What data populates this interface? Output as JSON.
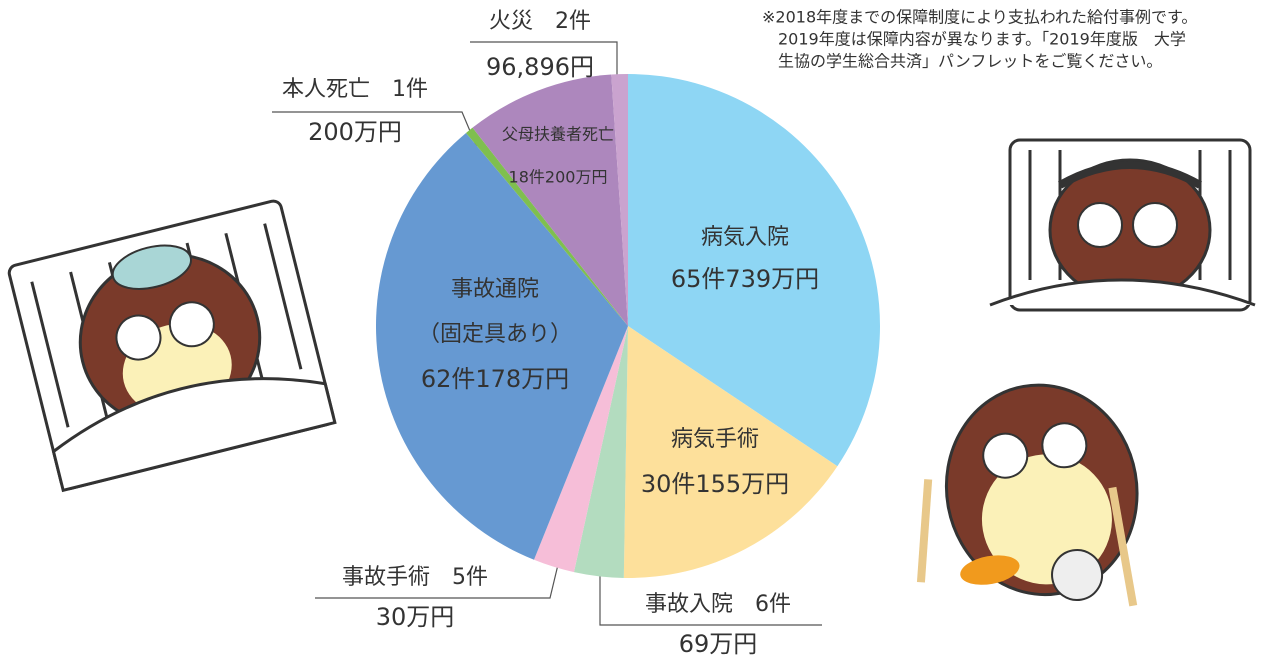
{
  "chart_data": {
    "type": "pie",
    "categories": [
      "病気入院",
      "病気手術",
      "事故入院　6件",
      "事故手術　5件",
      "事故通院",
      "本人死亡　1件",
      "父母扶養者死亡",
      "火災　2件"
    ],
    "values": [
      65,
      30,
      6,
      5,
      62,
      1,
      18,
      2
    ],
    "value_labels": [
      "65件739万円",
      "30件155万円",
      "69万円",
      "30万円",
      "62件178万円",
      "200万円",
      "18件200万円",
      "96,896円"
    ],
    "colors": [
      "#8ed6f4",
      "#fde09b",
      "#b3dcbf",
      "#f6bed8",
      "#6699d2",
      "#7fbf4f",
      "#ad87bd",
      "#caa3cf"
    ],
    "annotations": [
      "（固定具あり）"
    ],
    "note": [
      "※2018年度までの保障制度により支払われた給付事例です。",
      "2019年度は保障内容が異なります。「2019年度版　大学",
      "生協の学生総合共済」パンフレットをご覧ください。"
    ]
  }
}
